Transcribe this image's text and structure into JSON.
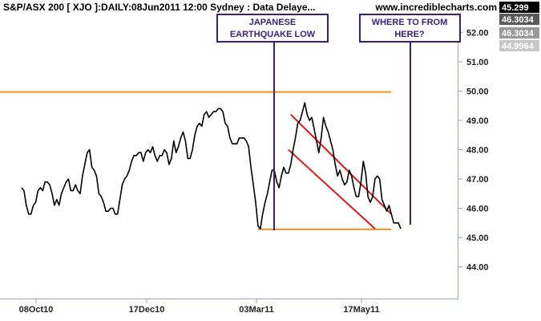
{
  "header": {
    "title": "S&P/ASX 200 [ XJO ]:DAILY:08Jun2011 12:00 Sydney : Data Delaye...",
    "site": "www.incrediblecharts.com"
  },
  "price_labels": [
    {
      "text": "45.299",
      "bg": "#000000",
      "fg": "#ffffff"
    },
    {
      "text": "46.3034",
      "bg": "#5a5a5a",
      "fg": "#ffffff"
    },
    {
      "text": "46.3034",
      "bg": "#9a9a9a",
      "fg": "#ffffff"
    },
    {
      "text": "44.9964",
      "bg": "#c8c8c8",
      "fg": "#ffffff"
    }
  ],
  "annotations": [
    {
      "lines": [
        "JAPANESE",
        "EARTHQUAKE LOW"
      ]
    },
    {
      "lines": [
        "WHERE TO FROM",
        "HERE?"
      ]
    }
  ],
  "colors": {
    "price": "#000000",
    "support": "#f0901e",
    "channel": "#e01818",
    "annotation": "#3a1f78",
    "axis": "#9aa4c8"
  },
  "chart_data": {
    "type": "line",
    "x_tick_labels": [
      "08Oct10",
      "17Dec10",
      "03Mar11",
      "17May11"
    ],
    "y_tick_labels": [
      "44.00",
      "45.00",
      "46.00",
      "47.00",
      "48.00",
      "49.00",
      "50.00",
      "51.00",
      "52.00"
    ],
    "ylim": [
      43.3,
      53.1
    ],
    "y_scale_note": "prices shown divided by 100",
    "series": [
      {
        "values": [
          46.7,
          46.6,
          46.1,
          45.8,
          45.8,
          46.1,
          46.2,
          46.6,
          46.7,
          46.6,
          46.9,
          46.9,
          46.8,
          46.5,
          46.1,
          46.3,
          46.1,
          46.5,
          46.7,
          46.9,
          47.0,
          46.6,
          46.6,
          46.8,
          46.6,
          46.5,
          47.1,
          47.5,
          47.9,
          48.0,
          47.4,
          47.3,
          47.1,
          46.5,
          46.4,
          46.2,
          45.9,
          45.9,
          46.0,
          46.0,
          45.8,
          45.8,
          46.3,
          46.8,
          47.0,
          47.1,
          47.3,
          47.6,
          47.8,
          47.8,
          47.9,
          47.9,
          47.6,
          47.9,
          48.0,
          47.9,
          48.1,
          47.8,
          47.6,
          47.8,
          47.8,
          48.0,
          47.9,
          47.5,
          47.7,
          48.3,
          47.9,
          48.1,
          48.4,
          48.6,
          48.3,
          47.7,
          47.7,
          48.0,
          48.5,
          48.8,
          48.9,
          48.8,
          49.2,
          49.3,
          49.1,
          49.2,
          49.3,
          49.3,
          49.4,
          49.4,
          49.3,
          48.9,
          48.8,
          48.4,
          48.2,
          48.2,
          48.2,
          48.4,
          48.4,
          48.4,
          48.3,
          48.1,
          47.4,
          46.8,
          46.2,
          45.4,
          45.3,
          45.8,
          46.2,
          46.5,
          46.9,
          47.3,
          47.3,
          46.9,
          46.7,
          47.1,
          47.4,
          47.2,
          47.2,
          47.5,
          48.0,
          48.4,
          48.9,
          49.0,
          49.3,
          49.6,
          49.2,
          49.0,
          49.1,
          48.7,
          48.3,
          47.9,
          48.4,
          49.1,
          48.8,
          48.6,
          48.3,
          48.0,
          47.5,
          47.1,
          47.3,
          47.0,
          46.8,
          46.9,
          47.3,
          47.1,
          46.7,
          46.4,
          46.4,
          46.9,
          47.6,
          47.2,
          46.4,
          46.2,
          46.4,
          47.0,
          47.1,
          47.0,
          46.3,
          46.1,
          45.9,
          46.1,
          45.8,
          45.5,
          45.5,
          45.5,
          45.3
        ]
      }
    ],
    "annotation_lines": [
      {
        "type": "support",
        "price": 49.97,
        "x_from": 0,
        "x_to": 158
      },
      {
        "type": "support",
        "price": 45.28,
        "x_from": 101,
        "x_to": 158
      },
      {
        "type": "channel",
        "from": [
          115,
          49.2
        ],
        "to": [
          158,
          45.8
        ]
      },
      {
        "type": "channel",
        "from": [
          114,
          48.0
        ],
        "to": [
          151,
          45.3
        ]
      }
    ],
    "grid": false,
    "legend": "none"
  }
}
